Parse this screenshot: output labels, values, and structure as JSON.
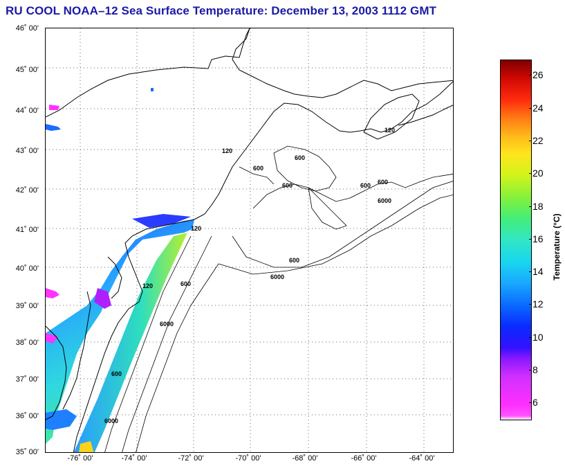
{
  "title": "RU COOL  NOAA–12  Sea Surface Temperature:  December 13, 2003 1112 GMT",
  "map": {
    "lat_labels": [
      "46˚ 00'",
      "45˚ 00'",
      "44˚ 00'",
      "43˚ 00'",
      "42˚ 00'",
      "41˚ 00'",
      "40˚ 00'",
      "39˚ 00'",
      "38˚ 00'",
      "37˚ 00'",
      "36˚ 00'",
      "35˚ 00'"
    ],
    "lon_labels": [
      "-76˚ 00'",
      "-74˚ 00'",
      "-72˚ 00'",
      "-70˚ 00'",
      "-68˚ 00'",
      "-66˚ 00'",
      "-64˚ 00'"
    ],
    "contour_labels": {
      "c600": "600",
      "c6000": "6000",
      "c120": "120"
    }
  },
  "colorbar": {
    "label": "Temperature (°C)",
    "ticks": [
      "26",
      "24",
      "22",
      "20",
      "18",
      "16",
      "14",
      "12",
      "10",
      "8",
      "6"
    ],
    "tick_values": [
      26,
      24,
      22,
      20,
      18,
      16,
      14,
      12,
      10,
      8,
      6
    ],
    "range": [
      5,
      27
    ],
    "colors": {
      "low": "#ff30ff",
      "mid_blue": "#0a2bff",
      "cyan": "#19d7ee",
      "green": "#44ee78",
      "yellow": "#ffe51c",
      "orange": "#ff7a14",
      "high": "#7e0000"
    }
  }
}
